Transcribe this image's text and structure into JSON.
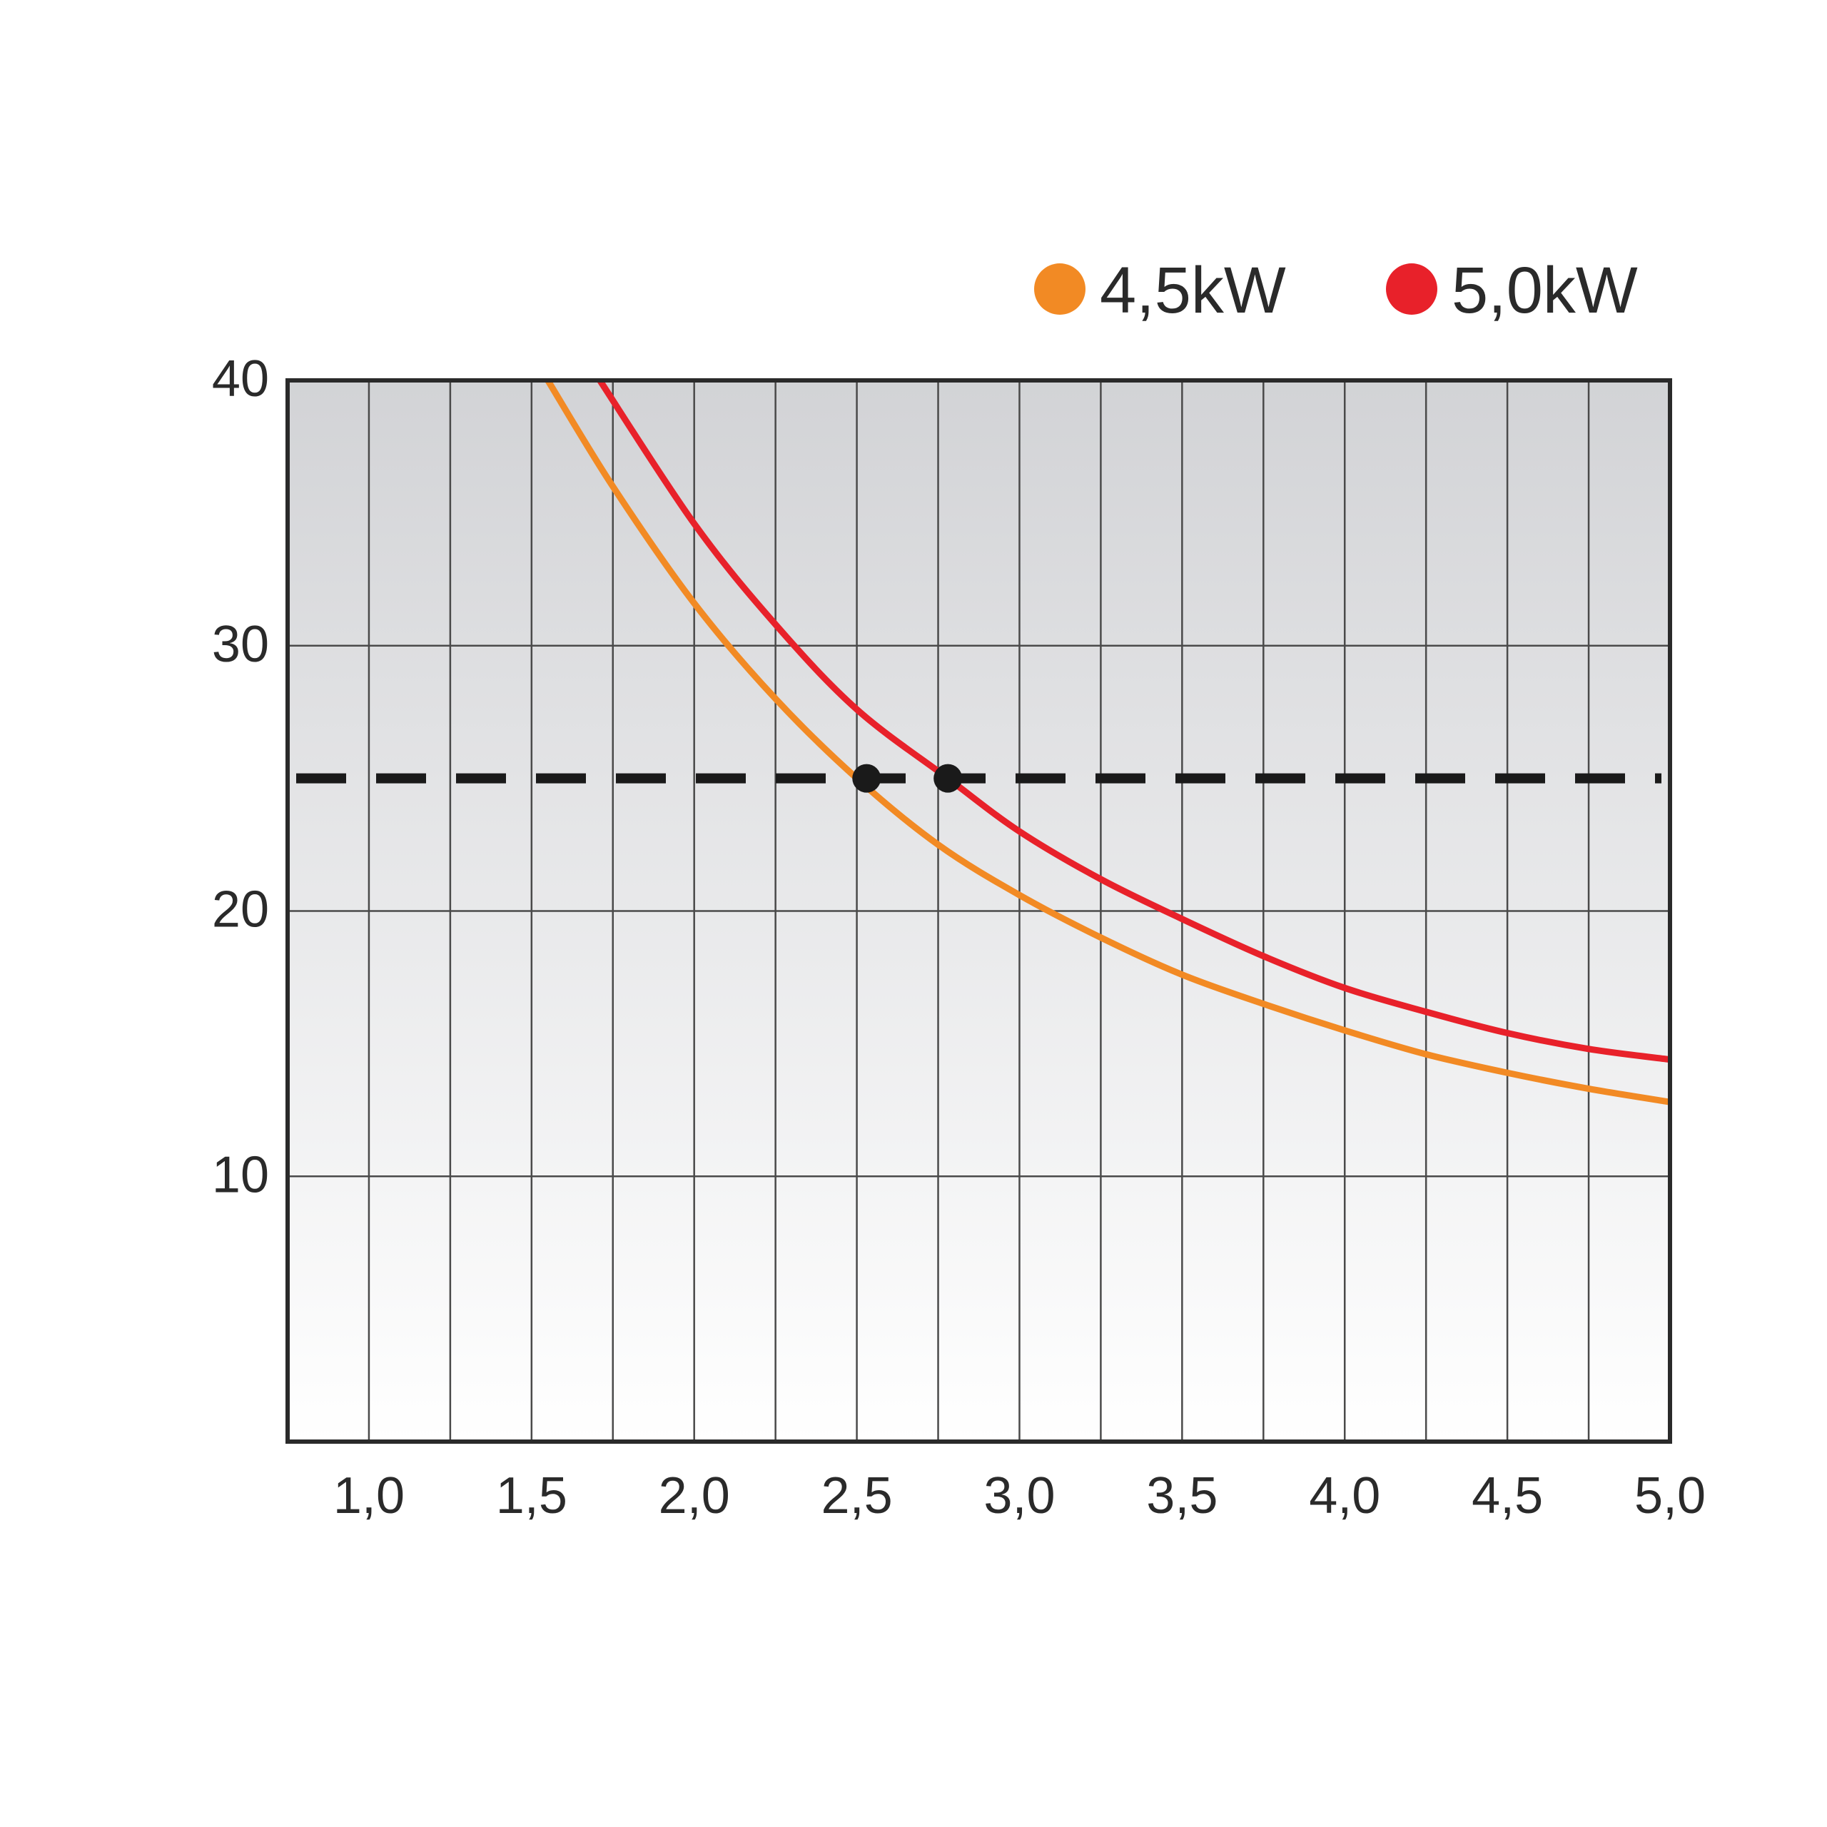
{
  "chart_data": {
    "type": "line",
    "title": "",
    "xlabel": "",
    "ylabel": "",
    "xlim": [
      0.75,
      5.0
    ],
    "ylim": [
      0,
      40
    ],
    "x_ticks": [
      1.0,
      1.5,
      2.0,
      2.5,
      3.0,
      3.5,
      4.0,
      4.5,
      5.0
    ],
    "x_tick_labels": [
      "1,0",
      "1,5",
      "2,0",
      "2,5",
      "3,0",
      "3,5",
      "4,0",
      "4,5",
      "5,0"
    ],
    "y_ticks": [
      10,
      20,
      30,
      40
    ],
    "y_tick_labels": [
      "10",
      "20",
      "30",
      "40"
    ],
    "grid": true,
    "legend_position": "top-right",
    "series": [
      {
        "name": "4,5kW",
        "color": "#f28a24",
        "x": [
          1.55,
          1.75,
          2.0,
          2.25,
          2.5,
          2.75,
          3.0,
          3.25,
          3.5,
          3.75,
          4.0,
          4.25,
          4.5,
          4.75,
          5.0
        ],
        "y": [
          40.0,
          36.0,
          31.6,
          28.0,
          25.0,
          22.5,
          20.6,
          19.0,
          17.6,
          16.5,
          15.5,
          14.6,
          13.9,
          13.3,
          12.8
        ]
      },
      {
        "name": "5,0kW",
        "color": "#e8212a",
        "x": [
          1.71,
          2.0,
          2.25,
          2.5,
          2.78,
          3.0,
          3.25,
          3.5,
          3.75,
          4.0,
          4.25,
          4.5,
          4.75,
          5.0
        ],
        "y": [
          40.0,
          34.6,
          30.8,
          27.6,
          25.0,
          23.0,
          21.2,
          19.7,
          18.3,
          17.1,
          16.2,
          15.4,
          14.8,
          14.4
        ]
      }
    ],
    "reference_line": {
      "y": 25,
      "style": "dashed",
      "color": "#1a1a1a"
    },
    "markers": [
      {
        "x": 2.53,
        "y": 25,
        "color": "#1a1a1a"
      },
      {
        "x": 2.78,
        "y": 25,
        "color": "#1a1a1a"
      }
    ],
    "background_gradient": [
      "#d2d3d6",
      "#ffffff"
    ],
    "vertical_gridlines": [
      1.0,
      1.25,
      1.5,
      1.75,
      2.0,
      2.25,
      2.5,
      2.75,
      3.0,
      3.25,
      3.5,
      3.75,
      4.0,
      4.25,
      4.5,
      4.75
    ]
  }
}
